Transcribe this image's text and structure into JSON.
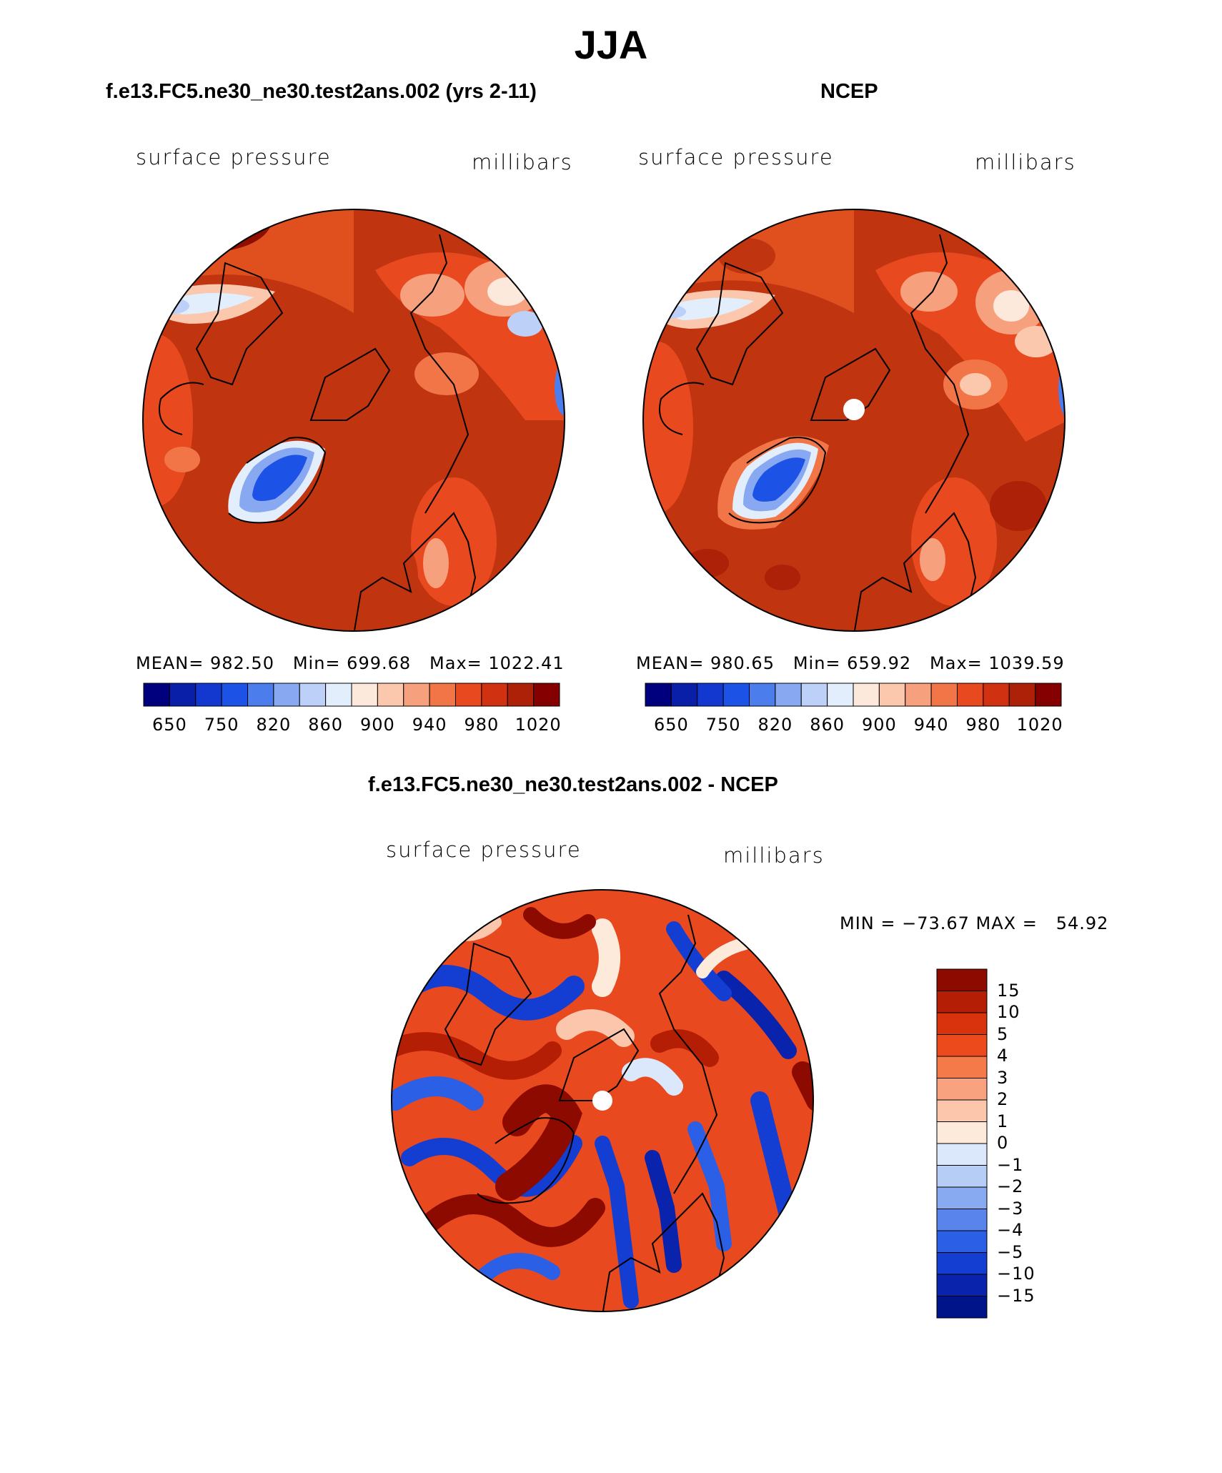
{
  "title": "JJA",
  "panels": [
    {
      "title": "f.e13.FC5.ne30_ne30.test2ans.002 (yrs 2-11)",
      "variable": "surface pressure",
      "units": "millibars",
      "stats": "MEAN= 982.50   Min= 699.68   Max= 1022.41"
    },
    {
      "title": "NCEP",
      "variable": "surface pressure",
      "units": "millibars",
      "stats": "MEAN= 980.65   Min= 659.92   Max= 1039.59"
    }
  ],
  "diff": {
    "title": "f.e13.FC5.ne30_ne30.test2ans.002 - NCEP",
    "variable": "surface pressure",
    "units": "millibars",
    "stats": "MIN = −73.67 MAX =   54.92"
  },
  "abs_colorbar": {
    "labels": [
      "650",
      "750",
      "820",
      "860",
      "900",
      "940",
      "980",
      "1020"
    ],
    "colors": [
      "#00007f",
      "#0a1fa8",
      "#1238d0",
      "#1d52e6",
      "#4b7ded",
      "#88a8f2",
      "#bcd0f8",
      "#e2eefb",
      "#fde8dc",
      "#fbc8ae",
      "#f7a07e",
      "#f27548",
      "#e9491f",
      "#d03110",
      "#ac2108",
      "#850000"
    ]
  },
  "diff_colorbar": {
    "labels": [
      "15",
      "10",
      "5",
      "4",
      "3",
      "2",
      "1",
      "0",
      "−1",
      "−2",
      "−3",
      "−4",
      "−5",
      "−10",
      "−15"
    ],
    "colors": [
      "#8c0a00",
      "#b41e05",
      "#d8330c",
      "#ec4a1d",
      "#f47a4a",
      "#f9a27f",
      "#fcc6ad",
      "#feeadb",
      "#dbe8fb",
      "#b6cdf6",
      "#88aaf1",
      "#5884ec",
      "#2b5fe6",
      "#143ed1",
      "#0a23ad",
      "#00148a"
    ]
  }
}
